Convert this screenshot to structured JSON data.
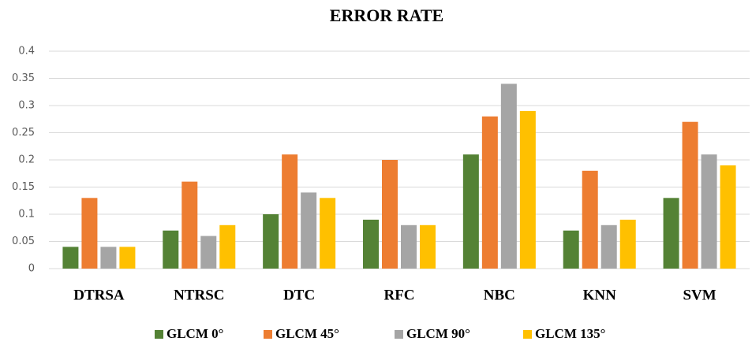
{
  "chart_data": {
    "type": "bar",
    "title": "ERROR RATE",
    "categories": [
      "DTRSA",
      "NTRSC",
      "DTC",
      "RFC",
      "NBC",
      "KNN",
      "SVM"
    ],
    "series": [
      {
        "name": "GLCM 0°",
        "color": "#548235",
        "values": [
          0.04,
          0.07,
          0.1,
          0.09,
          0.21,
          0.07,
          0.13
        ]
      },
      {
        "name": "GLCM 45°",
        "color": "#ed7d31",
        "values": [
          0.13,
          0.16,
          0.21,
          0.2,
          0.28,
          0.18,
          0.27
        ]
      },
      {
        "name": "GLCM 90°",
        "color": "#a5a5a5",
        "values": [
          0.04,
          0.06,
          0.14,
          0.08,
          0.34,
          0.08,
          0.21
        ]
      },
      {
        "name": "GLCM 135°",
        "color": "#ffc000",
        "values": [
          0.04,
          0.08,
          0.13,
          0.08,
          0.29,
          0.09,
          0.19
        ]
      }
    ],
    "ylim": [
      0,
      0.4
    ],
    "yticks": [
      0,
      0.05,
      0.1,
      0.15,
      0.2,
      0.25,
      0.3,
      0.35,
      0.4
    ],
    "grid": true,
    "legend": "bottom"
  }
}
